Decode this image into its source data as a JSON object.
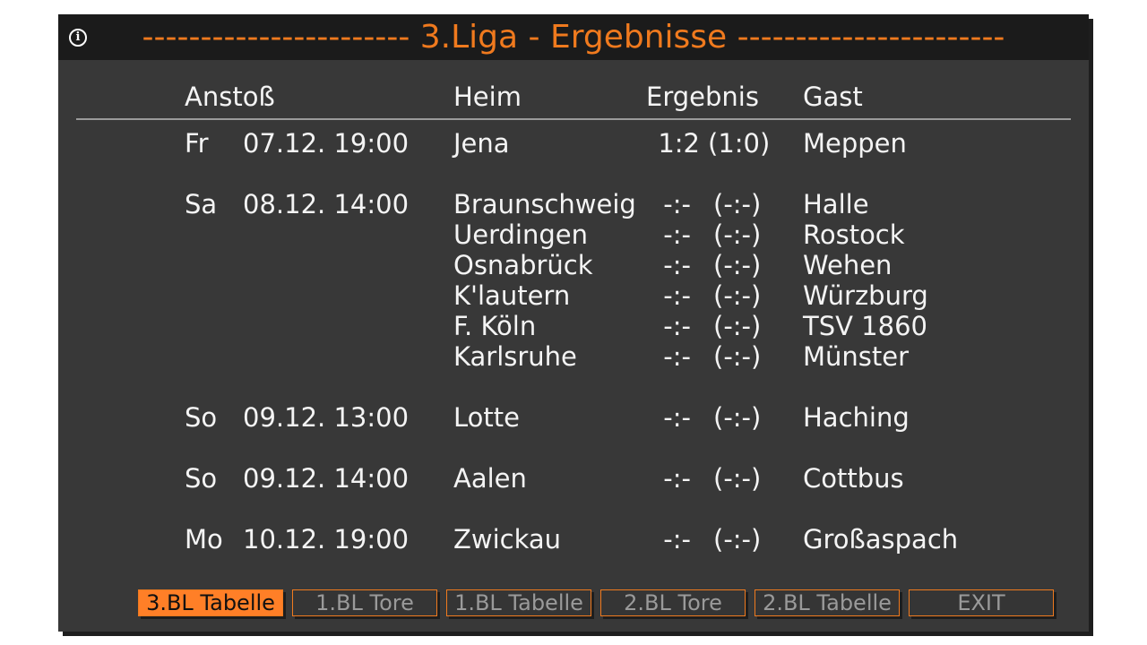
{
  "window": {
    "title": "----------------------- 3.Liga - Ergebnisse -----------------------",
    "info_icon": "info-icon"
  },
  "columns": {
    "kickoff": "Anstoß",
    "home": "Heim",
    "result": "Ergebnis",
    "guest": "Gast"
  },
  "groups": [
    {
      "day": "Fr",
      "datetime": "07.12. 19:00",
      "matches": [
        {
          "home": "Jena",
          "score": "1:2",
          "halftime": "(1:0)",
          "guest": "Meppen"
        }
      ]
    },
    {
      "day": "Sa",
      "datetime": "08.12. 14:00",
      "matches": [
        {
          "home": "Braunschweig",
          "score": "-:-",
          "halftime": "(-:-)",
          "guest": "Halle"
        },
        {
          "home": "Uerdingen",
          "score": "-:-",
          "halftime": "(-:-)",
          "guest": "Rostock"
        },
        {
          "home": "Osnabrück",
          "score": "-:-",
          "halftime": "(-:-)",
          "guest": "Wehen"
        },
        {
          "home": "K'lautern",
          "score": "-:-",
          "halftime": "(-:-)",
          "guest": "Würzburg"
        },
        {
          "home": "F. Köln",
          "score": "-:-",
          "halftime": "(-:-)",
          "guest": "TSV 1860"
        },
        {
          "home": "Karlsruhe",
          "score": "-:-",
          "halftime": "(-:-)",
          "guest": "Münster"
        }
      ]
    },
    {
      "day": "So",
      "datetime": "09.12. 13:00",
      "matches": [
        {
          "home": "Lotte",
          "score": "-:-",
          "halftime": "(-:-)",
          "guest": "Haching"
        }
      ]
    },
    {
      "day": "So",
      "datetime": "09.12. 14:00",
      "matches": [
        {
          "home": "Aalen",
          "score": "-:-",
          "halftime": "(-:-)",
          "guest": "Cottbus"
        }
      ]
    },
    {
      "day": "Mo",
      "datetime": "10.12. 19:00",
      "matches": [
        {
          "home": "Zwickau",
          "score": "-:-",
          "halftime": "(-:-)",
          "guest": "Großaspach"
        }
      ]
    }
  ],
  "buttons": [
    {
      "label": "3.BL Tabelle",
      "active": true
    },
    {
      "label": "1.BL Tore",
      "active": false
    },
    {
      "label": "1.BL Tabelle",
      "active": false
    },
    {
      "label": "2.BL Tore",
      "active": false
    },
    {
      "label": "2.BL Tabelle",
      "active": false
    },
    {
      "label": "EXIT",
      "active": false
    }
  ],
  "colors": {
    "accent": "#ff7f27",
    "title": "#f07a1e",
    "background": "#383838",
    "titlebar": "#1b1b1b"
  }
}
